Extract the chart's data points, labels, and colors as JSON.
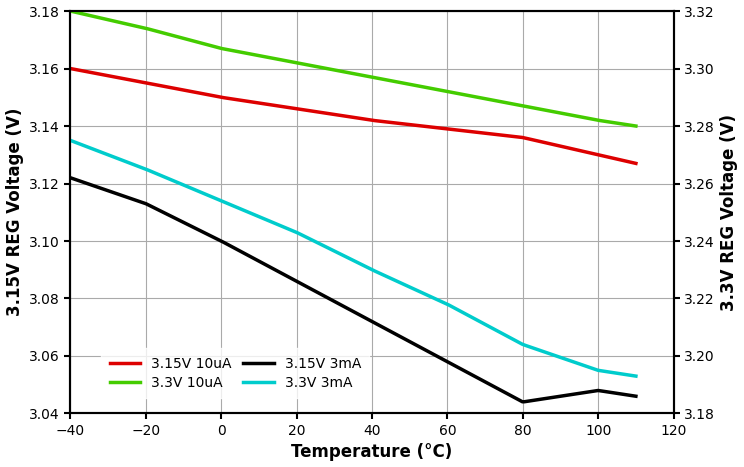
{
  "title": "",
  "xlabel": "Temperature (°C)",
  "ylabel_left": "3.15V REG Voltage (V)",
  "ylabel_right": "3.3V REG Voltage (V)",
  "xlim": [
    -40,
    120
  ],
  "ylim_left": [
    3.04,
    3.18
  ],
  "ylim_right": [
    3.18,
    3.32
  ],
  "xticks": [
    -40,
    -20,
    0,
    20,
    40,
    60,
    80,
    100,
    120
  ],
  "yticks_left": [
    3.04,
    3.06,
    3.08,
    3.1,
    3.12,
    3.14,
    3.16,
    3.18
  ],
  "yticks_right": [
    3.18,
    3.2,
    3.22,
    3.24,
    3.26,
    3.28,
    3.3,
    3.32
  ],
  "series": [
    {
      "label": "3.15V 10uA",
      "color": "#dd0000",
      "linewidth": 2.5,
      "x": [
        -40,
        -20,
        0,
        20,
        40,
        60,
        80,
        100,
        110
      ],
      "y": [
        3.16,
        3.155,
        3.15,
        3.146,
        3.142,
        3.139,
        3.136,
        3.13,
        3.127
      ],
      "axis": "left"
    },
    {
      "label": "3.3V 10uA",
      "color": "#44cc00",
      "linewidth": 2.5,
      "x": [
        -40,
        -20,
        0,
        20,
        40,
        60,
        80,
        100,
        110
      ],
      "y": [
        3.32,
        3.314,
        3.307,
        3.302,
        3.297,
        3.292,
        3.287,
        3.282,
        3.28
      ],
      "axis": "right"
    },
    {
      "label": "3.15V 3mA",
      "color": "#000000",
      "linewidth": 2.5,
      "x": [
        -40,
        -20,
        0,
        20,
        40,
        60,
        80,
        100,
        110
      ],
      "y": [
        3.122,
        3.113,
        3.1,
        3.086,
        3.072,
        3.058,
        3.044,
        3.048,
        3.046
      ],
      "axis": "left"
    },
    {
      "label": "3.3V 3mA",
      "color": "#00cccc",
      "linewidth": 2.5,
      "x": [
        -40,
        -20,
        0,
        20,
        40,
        60,
        80,
        100,
        110
      ],
      "y": [
        3.275,
        3.265,
        3.254,
        3.243,
        3.23,
        3.218,
        3.204,
        3.195,
        3.193
      ],
      "axis": "right"
    }
  ],
  "legend_entries": [
    {
      "label": "3.15V 10uA",
      "color": "#dd0000"
    },
    {
      "label": "3.3V 10uA",
      "color": "#44cc00"
    },
    {
      "label": "3.15V 3mA",
      "color": "#000000"
    },
    {
      "label": "3.3V 3mA",
      "color": "#00cccc"
    }
  ],
  "grid_color": "#aaaaaa",
  "background_color": "#ffffff",
  "tick_fontsize": 10,
  "label_fontsize": 12
}
